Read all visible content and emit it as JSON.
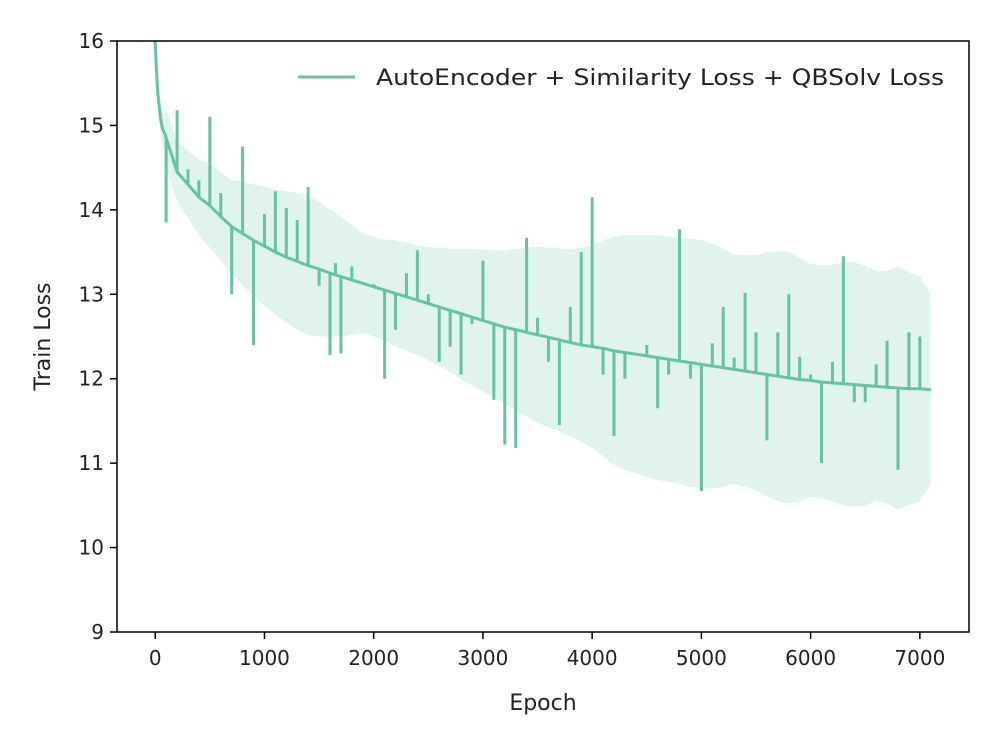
{
  "chart_data": {
    "type": "line",
    "title": "",
    "xlabel": "Epoch",
    "ylabel": "Train Loss",
    "xlim": [
      -350,
      7450
    ],
    "ylim": [
      9,
      16
    ],
    "xticks": [
      0,
      1000,
      2000,
      3000,
      4000,
      5000,
      6000,
      7000
    ],
    "yticks": [
      9,
      10,
      11,
      12,
      13,
      14,
      15,
      16
    ],
    "grid": false,
    "legend_position": "top-right",
    "color": "#66c2a5",
    "series": [
      {
        "name": "AutoEncoder + Similarity Loss + QBSolv Loss",
        "x": [
          0,
          10,
          20,
          30,
          40,
          50,
          60,
          70,
          80,
          90,
          100,
          200,
          300,
          400,
          500,
          600,
          700,
          800,
          900,
          1000,
          1100,
          1200,
          1300,
          1400,
          1500,
          1600,
          1700,
          1800,
          1900,
          2000,
          2100,
          2200,
          2300,
          2400,
          2500,
          2600,
          2700,
          2800,
          2900,
          3000,
          3100,
          3200,
          3300,
          3400,
          3500,
          3600,
          3700,
          3800,
          3900,
          4000,
          4100,
          4200,
          4300,
          4400,
          4500,
          4600,
          4700,
          4800,
          4900,
          5000,
          5100,
          5200,
          5300,
          5400,
          5500,
          5600,
          5700,
          5800,
          5900,
          6000,
          6100,
          6200,
          6300,
          6400,
          6500,
          6600,
          6700,
          6800,
          6900,
          7000,
          7100
        ],
        "y": [
          16.0,
          15.7,
          15.45,
          15.3,
          15.18,
          15.08,
          15.0,
          14.95,
          14.92,
          14.9,
          14.85,
          14.45,
          14.3,
          14.15,
          14.05,
          13.92,
          13.8,
          13.72,
          13.64,
          13.57,
          13.5,
          13.44,
          13.39,
          13.34,
          13.3,
          13.25,
          13.21,
          13.17,
          13.13,
          13.09,
          13.05,
          13.01,
          12.97,
          12.93,
          12.89,
          12.85,
          12.81,
          12.77,
          12.73,
          12.69,
          12.65,
          12.61,
          12.58,
          12.55,
          12.52,
          12.49,
          12.46,
          12.43,
          12.4,
          12.38,
          12.36,
          12.33,
          12.31,
          12.29,
          12.27,
          12.25,
          12.23,
          12.21,
          12.19,
          12.17,
          12.15,
          12.13,
          12.11,
          12.09,
          12.07,
          12.05,
          12.03,
          12.01,
          11.99,
          11.98,
          11.96,
          11.95,
          11.94,
          11.93,
          11.92,
          11.91,
          11.9,
          11.89,
          11.88,
          11.88,
          11.87
        ],
        "band_lower": [
          16.0,
          15.6,
          15.3,
          15.1,
          15.0,
          14.9,
          14.8,
          14.75,
          14.7,
          14.65,
          14.5,
          14.1,
          13.9,
          13.7,
          13.55,
          13.4,
          13.25,
          13.1,
          12.98,
          12.86,
          12.76,
          12.66,
          12.58,
          12.52,
          12.5,
          12.5,
          12.5,
          12.52,
          12.54,
          12.5,
          12.45,
          12.38,
          12.33,
          12.28,
          12.22,
          12.15,
          12.08,
          12.0,
          11.92,
          11.85,
          11.78,
          11.7,
          11.62,
          11.55,
          11.48,
          11.42,
          11.38,
          11.32,
          11.25,
          11.18,
          11.08,
          10.98,
          10.92,
          10.88,
          10.84,
          10.8,
          10.78,
          10.75,
          10.72,
          10.7,
          10.7,
          10.72,
          10.75,
          10.72,
          10.68,
          10.6,
          10.55,
          10.52,
          10.55,
          10.6,
          10.58,
          10.55,
          10.5,
          10.48,
          10.5,
          10.55,
          10.52,
          10.45,
          10.5,
          10.55,
          10.75
        ],
        "band_upper": [
          16.0,
          15.8,
          15.6,
          15.5,
          15.36,
          15.26,
          15.2,
          15.15,
          15.14,
          15.15,
          15.2,
          14.8,
          14.7,
          14.6,
          14.55,
          14.45,
          14.35,
          14.34,
          14.3,
          14.28,
          14.24,
          14.22,
          14.2,
          14.16,
          14.1,
          14.0,
          13.92,
          13.82,
          13.72,
          13.68,
          13.65,
          13.64,
          13.61,
          13.58,
          13.56,
          13.55,
          13.54,
          13.54,
          13.54,
          13.53,
          13.52,
          13.52,
          13.54,
          13.55,
          13.56,
          13.56,
          13.54,
          13.54,
          13.55,
          13.58,
          13.64,
          13.68,
          13.7,
          13.7,
          13.7,
          13.7,
          13.68,
          13.67,
          13.66,
          13.64,
          13.6,
          13.54,
          13.47,
          13.46,
          13.46,
          13.5,
          13.51,
          13.5,
          13.43,
          13.36,
          13.34,
          13.35,
          13.38,
          13.38,
          13.34,
          13.27,
          13.28,
          13.33,
          13.26,
          13.21,
          13.0
        ]
      }
    ],
    "spikes": [
      {
        "x": 100,
        "y": 13.85
      },
      {
        "x": 200,
        "y": 15.18
      },
      {
        "x": 300,
        "y": 14.48
      },
      {
        "x": 400,
        "y": 14.35
      },
      {
        "x": 500,
        "y": 15.1
      },
      {
        "x": 600,
        "y": 14.2
      },
      {
        "x": 700,
        "y": 13.0
      },
      {
        "x": 800,
        "y": 14.75
      },
      {
        "x": 900,
        "y": 12.4
      },
      {
        "x": 1000,
        "y": 13.95
      },
      {
        "x": 1100,
        "y": 14.22
      },
      {
        "x": 1200,
        "y": 14.02
      },
      {
        "x": 1300,
        "y": 13.88
      },
      {
        "x": 1400,
        "y": 14.27
      },
      {
        "x": 1500,
        "y": 13.1
      },
      {
        "x": 1600,
        "y": 12.28
      },
      {
        "x": 1650,
        "y": 13.37
      },
      {
        "x": 1700,
        "y": 12.3
      },
      {
        "x": 1800,
        "y": 13.33
      },
      {
        "x": 2000,
        "y": 13.12
      },
      {
        "x": 2100,
        "y": 12.0
      },
      {
        "x": 2200,
        "y": 12.58
      },
      {
        "x": 2300,
        "y": 13.25
      },
      {
        "x": 2400,
        "y": 13.52
      },
      {
        "x": 2500,
        "y": 13.0
      },
      {
        "x": 2600,
        "y": 12.2
      },
      {
        "x": 2700,
        "y": 12.38
      },
      {
        "x": 2800,
        "y": 12.05
      },
      {
        "x": 2900,
        "y": 12.65
      },
      {
        "x": 3000,
        "y": 13.4
      },
      {
        "x": 3100,
        "y": 11.75
      },
      {
        "x": 3200,
        "y": 11.22
      },
      {
        "x": 3300,
        "y": 11.18
      },
      {
        "x": 3400,
        "y": 13.67
      },
      {
        "x": 3500,
        "y": 12.72
      },
      {
        "x": 3600,
        "y": 12.2
      },
      {
        "x": 3700,
        "y": 11.45
      },
      {
        "x": 3800,
        "y": 12.85
      },
      {
        "x": 3900,
        "y": 13.5
      },
      {
        "x": 4000,
        "y": 14.15
      },
      {
        "x": 4100,
        "y": 12.05
      },
      {
        "x": 4200,
        "y": 11.32
      },
      {
        "x": 4300,
        "y": 12.0
      },
      {
        "x": 4400,
        "y": 12.3
      },
      {
        "x": 4500,
        "y": 12.4
      },
      {
        "x": 4600,
        "y": 11.65
      },
      {
        "x": 4700,
        "y": 12.05
      },
      {
        "x": 4800,
        "y": 13.77
      },
      {
        "x": 4900,
        "y": 12.0
      },
      {
        "x": 5000,
        "y": 10.67
      },
      {
        "x": 5100,
        "y": 12.42
      },
      {
        "x": 5200,
        "y": 12.85
      },
      {
        "x": 5300,
        "y": 12.25
      },
      {
        "x": 5400,
        "y": 13.02
      },
      {
        "x": 5500,
        "y": 12.55
      },
      {
        "x": 5600,
        "y": 11.27
      },
      {
        "x": 5700,
        "y": 12.55
      },
      {
        "x": 5800,
        "y": 13.0
      },
      {
        "x": 5900,
        "y": 12.26
      },
      {
        "x": 6000,
        "y": 12.05
      },
      {
        "x": 6100,
        "y": 11.0
      },
      {
        "x": 6200,
        "y": 12.2
      },
      {
        "x": 6300,
        "y": 13.45
      },
      {
        "x": 6400,
        "y": 11.72
      },
      {
        "x": 6500,
        "y": 11.72
      },
      {
        "x": 6600,
        "y": 12.17
      },
      {
        "x": 6700,
        "y": 12.45
      },
      {
        "x": 6800,
        "y": 10.92
      },
      {
        "x": 6900,
        "y": 12.55
      },
      {
        "x": 7000,
        "y": 12.5
      }
    ]
  }
}
